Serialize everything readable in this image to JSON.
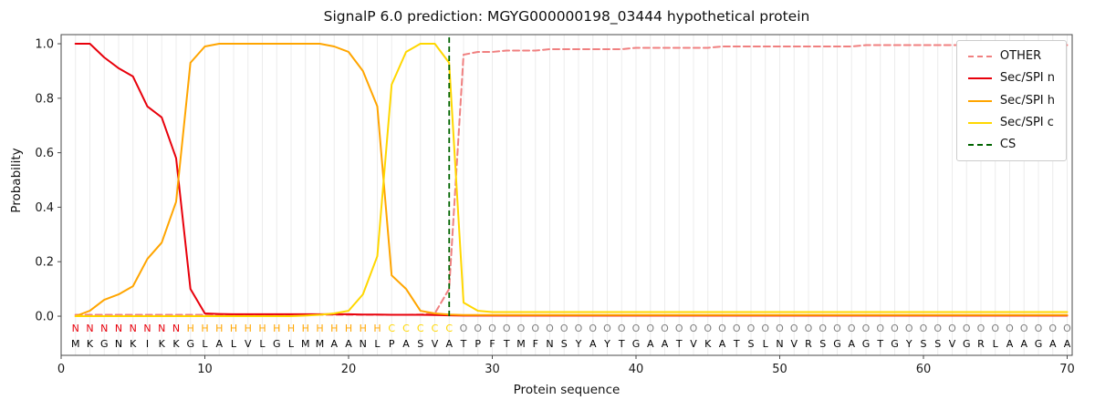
{
  "chart_data": {
    "type": "line",
    "title": "SignalP 6.0 prediction: MGYG000000198_03444 hypothetical protein",
    "xlabel": "Protein sequence",
    "ylabel": "Probability",
    "xticks": [
      0,
      10,
      20,
      30,
      40,
      50,
      60,
      70
    ],
    "xtick_labels": [
      "0",
      "10",
      "20",
      "30",
      "40",
      "50",
      "60",
      "70"
    ],
    "yticks": [
      0.0,
      0.2,
      0.4,
      0.6,
      0.8,
      1.0
    ],
    "ytick_labels": [
      "0.0",
      "0.2",
      "0.4",
      "0.6",
      "0.8",
      "1.0"
    ],
    "ylim": [
      0.0,
      1.0
    ],
    "grid": "vertical-per-residue",
    "legend_position": "upper-right",
    "x": [
      1,
      2,
      3,
      4,
      5,
      6,
      7,
      8,
      9,
      10,
      11,
      12,
      13,
      14,
      15,
      16,
      17,
      18,
      19,
      20,
      21,
      22,
      23,
      24,
      25,
      26,
      27,
      28,
      29,
      30,
      31,
      32,
      33,
      34,
      35,
      36,
      37,
      38,
      39,
      40,
      41,
      42,
      43,
      44,
      45,
      46,
      47,
      48,
      49,
      50,
      51,
      52,
      53,
      54,
      55,
      56,
      57,
      58,
      59,
      60,
      61,
      62,
      63,
      64,
      65,
      66,
      67,
      68,
      69,
      70
    ],
    "series": [
      {
        "name": "OTHER",
        "color": "#f08080",
        "dash": true,
        "values": [
          0.005,
          0.005,
          0.005,
          0.005,
          0.005,
          0.005,
          0.005,
          0.005,
          0.005,
          0.005,
          0.005,
          0.005,
          0.005,
          0.005,
          0.005,
          0.005,
          0.005,
          0.005,
          0.005,
          0.005,
          0.005,
          0.005,
          0.005,
          0.005,
          0.006,
          0.01,
          0.1,
          0.96,
          0.97,
          0.97,
          0.975,
          0.975,
          0.975,
          0.98,
          0.98,
          0.98,
          0.98,
          0.98,
          0.98,
          0.985,
          0.985,
          0.985,
          0.985,
          0.985,
          0.985,
          0.99,
          0.99,
          0.99,
          0.99,
          0.99,
          0.99,
          0.99,
          0.99,
          0.99,
          0.99,
          0.995,
          0.995,
          0.995,
          0.995,
          0.995,
          0.995,
          0.995,
          0.995,
          0.995,
          0.995,
          0.995,
          0.995,
          0.995,
          0.995,
          0.995
        ]
      },
      {
        "name": "Sec/SPI n",
        "color": "#e8000b",
        "dash": false,
        "values": [
          1.0,
          1.0,
          0.95,
          0.91,
          0.88,
          0.77,
          0.73,
          0.58,
          0.1,
          0.01,
          0.008,
          0.007,
          0.007,
          0.007,
          0.007,
          0.007,
          0.007,
          0.007,
          0.007,
          0.007,
          0.006,
          0.006,
          0.005,
          0.005,
          0.005,
          0.004,
          0.003,
          0.002,
          0.002,
          0.002,
          0.002,
          0.002,
          0.002,
          0.002,
          0.002,
          0.002,
          0.002,
          0.002,
          0.002,
          0.002,
          0.002,
          0.002,
          0.002,
          0.002,
          0.002,
          0.002,
          0.002,
          0.002,
          0.002,
          0.002,
          0.002,
          0.002,
          0.002,
          0.002,
          0.002,
          0.002,
          0.002,
          0.002,
          0.002,
          0.002,
          0.002,
          0.002,
          0.002,
          0.002,
          0.002,
          0.002,
          0.002,
          0.002,
          0.002,
          0.002
        ]
      },
      {
        "name": "Sec/SPI h",
        "color": "#ffa500",
        "dash": false,
        "values": [
          0.0,
          0.02,
          0.06,
          0.08,
          0.11,
          0.21,
          0.27,
          0.42,
          0.93,
          0.99,
          1.0,
          1.0,
          1.0,
          1.0,
          1.0,
          1.0,
          1.0,
          1.0,
          0.99,
          0.97,
          0.9,
          0.77,
          0.15,
          0.1,
          0.02,
          0.01,
          0.006,
          0.004,
          0.004,
          0.004,
          0.004,
          0.004,
          0.004,
          0.004,
          0.004,
          0.004,
          0.004,
          0.004,
          0.004,
          0.004,
          0.004,
          0.004,
          0.004,
          0.004,
          0.004,
          0.004,
          0.004,
          0.004,
          0.004,
          0.004,
          0.004,
          0.004,
          0.004,
          0.004,
          0.004,
          0.004,
          0.004,
          0.004,
          0.004,
          0.004,
          0.004,
          0.004,
          0.004,
          0.004,
          0.004,
          0.004,
          0.004,
          0.004,
          0.004,
          0.004
        ]
      },
      {
        "name": "Sec/SPI c",
        "color": "#ffd700",
        "dash": false,
        "values": [
          0.0,
          0.0,
          0.0,
          0.0,
          0.0,
          0.0,
          0.0,
          0.0,
          0.0,
          0.0,
          0.0,
          0.0,
          0.0,
          0.0,
          0.0,
          0.0,
          0.002,
          0.005,
          0.01,
          0.02,
          0.08,
          0.22,
          0.85,
          0.97,
          1.0,
          1.0,
          0.93,
          0.05,
          0.02,
          0.015,
          0.015,
          0.015,
          0.015,
          0.015,
          0.015,
          0.015,
          0.015,
          0.015,
          0.015,
          0.015,
          0.015,
          0.015,
          0.015,
          0.015,
          0.015,
          0.015,
          0.015,
          0.015,
          0.015,
          0.015,
          0.015,
          0.015,
          0.015,
          0.015,
          0.015,
          0.015,
          0.015,
          0.015,
          0.015,
          0.015,
          0.015,
          0.015,
          0.015,
          0.015,
          0.015,
          0.015,
          0.015,
          0.015,
          0.015,
          0.015
        ]
      }
    ],
    "cs_marker": {
      "label": "CS",
      "x": 27,
      "color": "#006400",
      "dash": true
    },
    "region_labels": "NNNNNNNNHHHHHHHHHHHHHHCCCCCOOOOOOOOOOOOOOOOOOOOOOOOOOOOOOOOOOOOOOOOOOO",
    "region_colors": {
      "N": "#e8000b",
      "H": "#ffa500",
      "C": "#ffd700",
      "O": "#7f7f7f"
    },
    "sequence": "MKGNKIKKGLALVLGLMMAANLPASVATPFTMFNSYAYTGAATVKATSLNVRSGAGTGYSSVGRLAAGAA"
  },
  "legend": {
    "entries": [
      {
        "label": "OTHER",
        "color": "#f08080",
        "dash": true
      },
      {
        "label": "Sec/SPI n",
        "color": "#e8000b",
        "dash": false
      },
      {
        "label": "Sec/SPI h",
        "color": "#ffa500",
        "dash": false
      },
      {
        "label": "Sec/SPI c",
        "color": "#ffd700",
        "dash": false
      },
      {
        "label": "CS",
        "color": "#006400",
        "dash": true
      }
    ]
  }
}
